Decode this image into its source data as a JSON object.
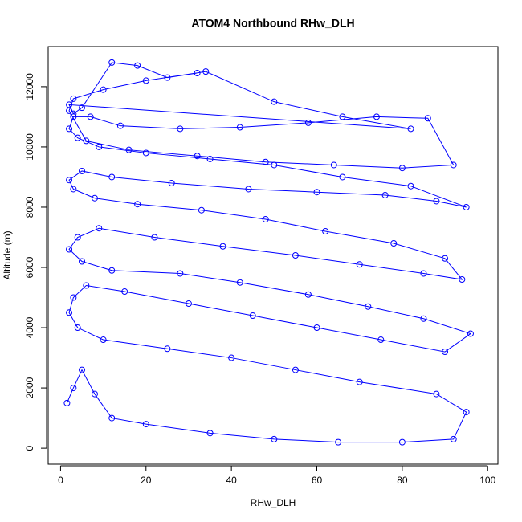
{
  "chart_data": {
    "type": "line",
    "title": "ATOM4 Northbound RHw_DLH",
    "x_label": "RHw_DLH",
    "y_label": "Altitude (m)",
    "color": "#0000ff",
    "markers": true,
    "xlim": [
      -2.9,
      102.4
    ],
    "ylim": [
      -530,
      13330
    ],
    "xticks": [
      0,
      20,
      40,
      60,
      80,
      100
    ],
    "yticks": [
      0,
      2000,
      4000,
      6000,
      8000,
      10000,
      12000
    ],
    "x": [
      1.5,
      3,
      5,
      8,
      12,
      20,
      35,
      50,
      65,
      80,
      92,
      95,
      88,
      70,
      55,
      40,
      25,
      10,
      4,
      2,
      3,
      6,
      15,
      30,
      45,
      60,
      75,
      90,
      96,
      85,
      72,
      58,
      42,
      28,
      12,
      5,
      2,
      4,
      9,
      22,
      38,
      55,
      70,
      85,
      94,
      90,
      78,
      62,
      48,
      33,
      18,
      8,
      3,
      2,
      5,
      12,
      26,
      44,
      60,
      76,
      88,
      95,
      82,
      66,
      50,
      35,
      20,
      9,
      4,
      2,
      3,
      7,
      14,
      28,
      42,
      58,
      74,
      86,
      92,
      80,
      64,
      48,
      32,
      16,
      6,
      2,
      3,
      10,
      20,
      34,
      50,
      66,
      82,
      2,
      3,
      5,
      12,
      18,
      25,
      32
    ],
    "values": [
      1500,
      2000,
      2600,
      1800,
      1000,
      800,
      500,
      300,
      200,
      200,
      300,
      1200,
      1800,
      2200,
      2600,
      3000,
      3300,
      3600,
      4000,
      4500,
      5000,
      5400,
      5200,
      4800,
      4400,
      4000,
      3600,
      3200,
      3800,
      4300,
      4700,
      5100,
      5500,
      5800,
      5900,
      6200,
      6600,
      7000,
      7300,
      7000,
      6700,
      6400,
      6100,
      5800,
      5600,
      6300,
      6800,
      7200,
      7600,
      7900,
      8100,
      8300,
      8600,
      8900,
      9200,
      9000,
      8800,
      8600,
      8500,
      8400,
      8200,
      8000,
      8700,
      9000,
      9400,
      9600,
      9800,
      10000,
      10300,
      10600,
      11000,
      11000,
      10700,
      10600,
      10650,
      10800,
      11000,
      10950,
      9400,
      9300,
      9400,
      9500,
      9700,
      9900,
      10200,
      11200,
      11600,
      11900,
      12200,
      12500,
      11500,
      11000,
      10600,
      11400,
      11100,
      11300,
      12800,
      12700,
      12300,
      12450
    ]
  }
}
